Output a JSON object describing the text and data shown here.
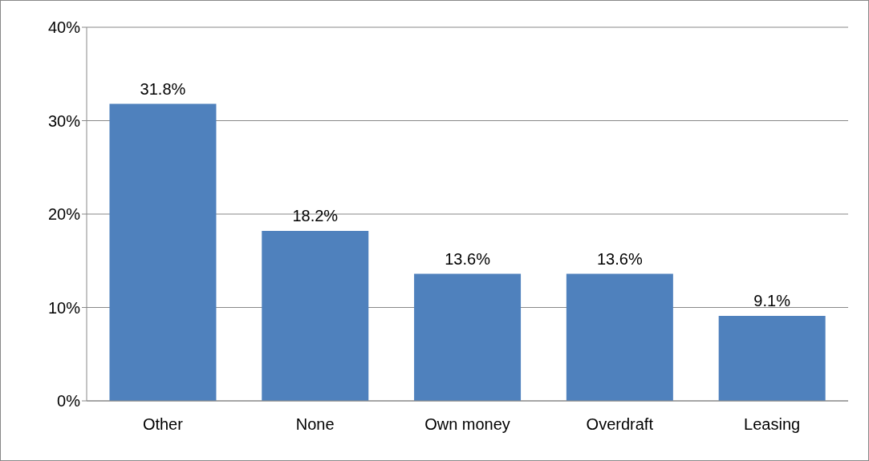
{
  "chart_data": {
    "type": "bar",
    "categories": [
      "Other",
      "None",
      "Own money",
      "Overdraft",
      "Leasing"
    ],
    "values": [
      31.8,
      18.2,
      13.6,
      13.6,
      9.1
    ],
    "value_labels": [
      "31.8%",
      "18.2%",
      "13.6%",
      "13.6%",
      "9.1%"
    ],
    "color": "#4f81bd",
    "ylim": [
      0,
      40
    ],
    "yticks": [
      {
        "value": 0,
        "label": "0%"
      },
      {
        "value": 10,
        "label": "10%"
      },
      {
        "value": 20,
        "label": "20%"
      },
      {
        "value": 30,
        "label": "30%"
      },
      {
        "value": 40,
        "label": "40%"
      }
    ],
    "grid": "y",
    "legend": false
  }
}
